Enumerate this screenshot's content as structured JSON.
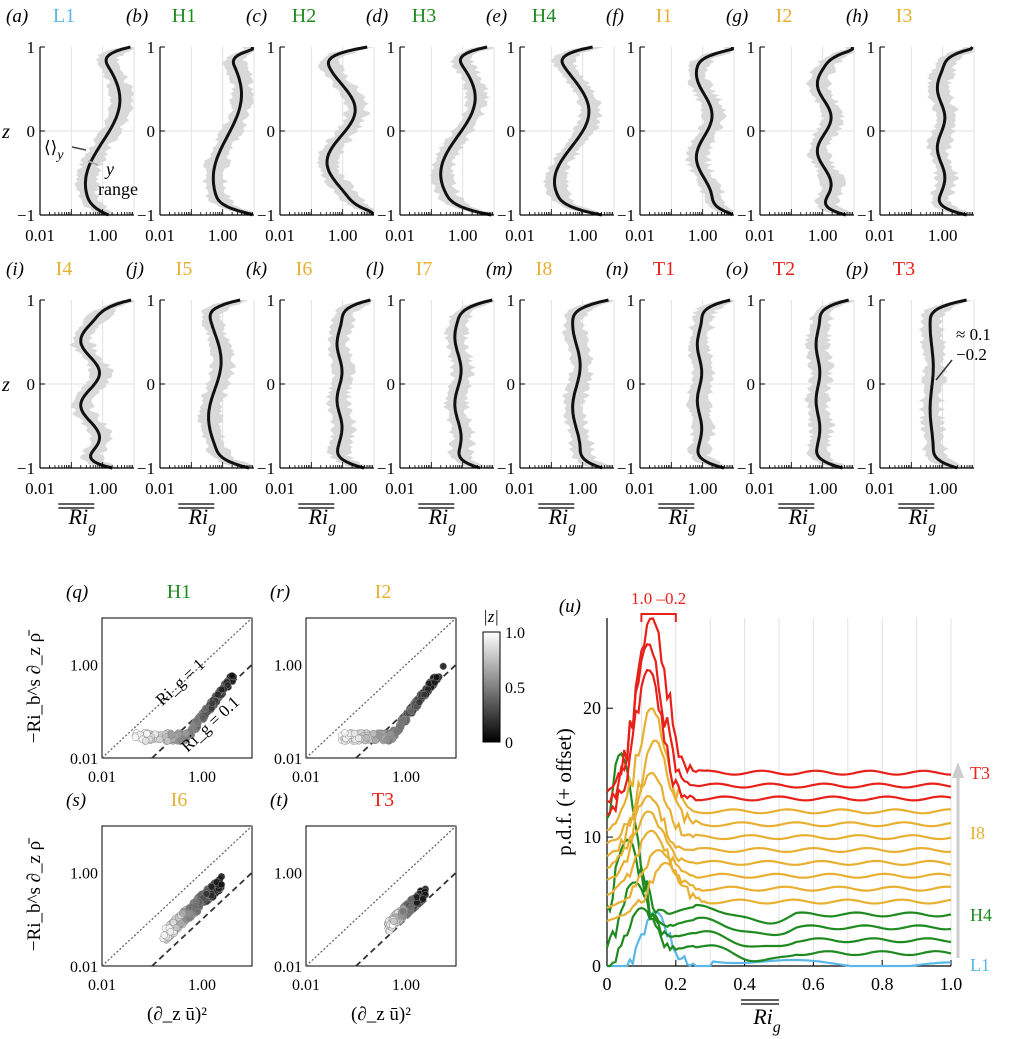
{
  "colors": {
    "L": "#5bb8e6",
    "H": "#1f8a1f",
    "I": "#e8b032",
    "T": "#e8201a",
    "profile": "#111111",
    "range": "#d9d9d9",
    "grid": "#e2e2e2"
  },
  "profiles": {
    "zlabel": "z",
    "xlabel": "Ri_g",
    "xticks": [
      "0.01",
      "1.00"
    ],
    "yticks": [
      "−1",
      "0",
      "1"
    ],
    "annotations": {
      "a_mean": "⟨⟩",
      "a_mean_sub": "y",
      "a_range1": "y",
      "a_range2": "range",
      "p_approx1": "≈ 0.1",
      "p_approx2": "−0.2"
    },
    "panels": [
      {
        "tag": "(a)",
        "name": "L1",
        "group": "L"
      },
      {
        "tag": "(b)",
        "name": "H1",
        "group": "H"
      },
      {
        "tag": "(c)",
        "name": "H2",
        "group": "H"
      },
      {
        "tag": "(d)",
        "name": "H3",
        "group": "H"
      },
      {
        "tag": "(e)",
        "name": "H4",
        "group": "H"
      },
      {
        "tag": "(f)",
        "name": "I1",
        "group": "I"
      },
      {
        "tag": "(g)",
        "name": "I2",
        "group": "I"
      },
      {
        "tag": "(h)",
        "name": "I3",
        "group": "I"
      },
      {
        "tag": "(i)",
        "name": "I4",
        "group": "I"
      },
      {
        "tag": "(j)",
        "name": "I5",
        "group": "I"
      },
      {
        "tag": "(k)",
        "name": "I6",
        "group": "I"
      },
      {
        "tag": "(l)",
        "name": "I7",
        "group": "I"
      },
      {
        "tag": "(m)",
        "name": "I8",
        "group": "I"
      },
      {
        "tag": "(n)",
        "name": "T1",
        "group": "T"
      },
      {
        "tag": "(o)",
        "name": "T2",
        "group": "T"
      },
      {
        "tag": "(p)",
        "name": "T3",
        "group": "T"
      }
    ]
  },
  "scatter": {
    "ylabel": "−Ri_b^s ∂_z ρ̄",
    "xlabel": "(∂_z ū)²",
    "ticks": [
      "0.01",
      "1.00"
    ],
    "line1_label": "Ri_g = 1",
    "line2_label": "Ri_g = 0.1",
    "colorbar_label": "|z|",
    "colorbar_ticks": [
      "1.0",
      "0.5",
      "0"
    ],
    "panels": [
      {
        "tag": "(q)",
        "name": "H1",
        "group": "H"
      },
      {
        "tag": "(r)",
        "name": "I2",
        "group": "I"
      },
      {
        "tag": "(s)",
        "name": "I6",
        "group": "I"
      },
      {
        "tag": "(t)",
        "name": "T3",
        "group": "T"
      }
    ]
  },
  "pdf": {
    "tag": "(u)",
    "ylabel": "p.d.f. (+ offset)",
    "xlabel": "Ri_g",
    "xticks": [
      "0",
      "0.2",
      "0.4",
      "0.6",
      "0.8",
      "1.0"
    ],
    "yticks": [
      "0",
      "10",
      "20"
    ],
    "bracket_label": "1.0 –0.2",
    "labels": [
      {
        "text": "T3",
        "group": "T"
      },
      {
        "text": "I8",
        "group": "I"
      },
      {
        "text": "H4",
        "group": "H"
      },
      {
        "text": "L1",
        "group": "L"
      }
    ]
  },
  "chart_data": {
    "type": "line",
    "profile_x_range": [
      0.01,
      10
    ],
    "profile_z_range": [
      -1,
      1
    ],
    "profile_x_scale": "log",
    "scatter_range": [
      0.01,
      10
    ],
    "scatter_scale": "log",
    "pdf_x_range": [
      0,
      1.0
    ],
    "pdf_y_range": [
      0,
      27
    ],
    "pdf_series": [
      {
        "group": "L",
        "offset": 0,
        "peak_x": 0.14,
        "peak_y": 4.2
      },
      {
        "group": "H",
        "offset": 1,
        "peak_x": 0.1,
        "peak_y": 4.5
      },
      {
        "group": "H",
        "offset": 2,
        "peak_x": 0.08,
        "peak_y": 6.5
      },
      {
        "group": "H",
        "offset": 3,
        "peak_x": 0.06,
        "peak_y": 9.8
      },
      {
        "group": "H",
        "offset": 4,
        "peak_x": 0.04,
        "peak_y": 16.5
      },
      {
        "group": "I",
        "offset": 5,
        "peak_x": 0.17,
        "peak_y": 8.0
      },
      {
        "group": "I",
        "offset": 6,
        "peak_x": 0.15,
        "peak_y": 9.0
      },
      {
        "group": "I",
        "offset": 7,
        "peak_x": 0.13,
        "peak_y": 10.5
      },
      {
        "group": "I",
        "offset": 8,
        "peak_x": 0.12,
        "peak_y": 12.0
      },
      {
        "group": "I",
        "offset": 9,
        "peak_x": 0.12,
        "peak_y": 13.2
      },
      {
        "group": "I",
        "offset": 10,
        "peak_x": 0.13,
        "peak_y": 15.0
      },
      {
        "group": "I",
        "offset": 11,
        "peak_x": 0.14,
        "peak_y": 17.5
      },
      {
        "group": "I",
        "offset": 12,
        "peak_x": 0.13,
        "peak_y": 20.0
      },
      {
        "group": "T",
        "offset": 13,
        "peak_x": 0.12,
        "peak_y": 23.0
      },
      {
        "group": "T",
        "offset": 14,
        "peak_x": 0.12,
        "peak_y": 25.0
      },
      {
        "group": "T",
        "offset": 15,
        "peak_x": 0.13,
        "peak_y": 27.0
      }
    ]
  }
}
